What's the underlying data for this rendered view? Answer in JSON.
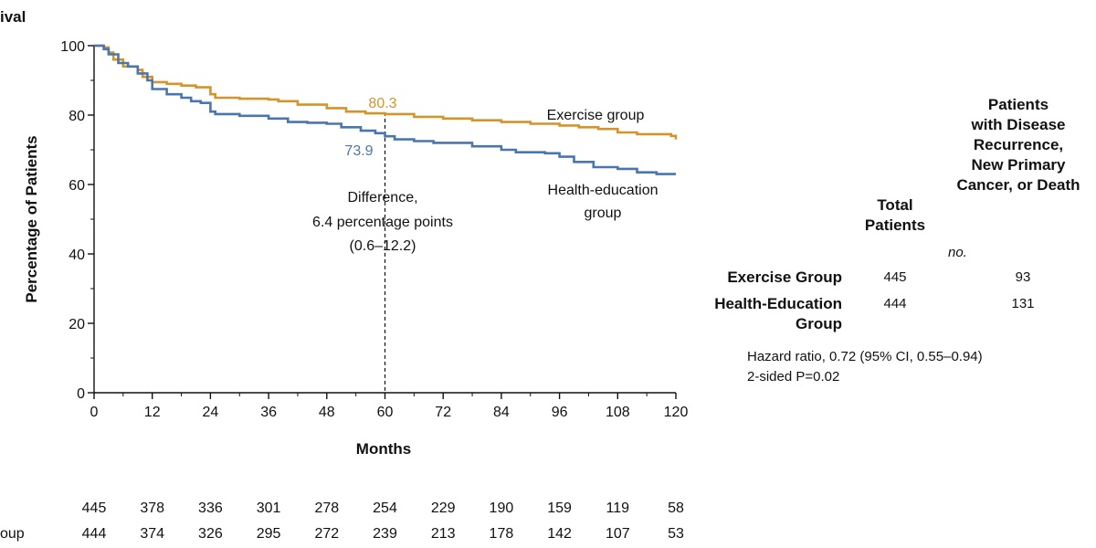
{
  "chart_data": {
    "type": "line",
    "title": "ival",
    "ylabel": "Percentage of Patients",
    "xlabel": "Months",
    "xlim": [
      0,
      120
    ],
    "ylim": [
      0,
      100
    ],
    "x_ticks": [
      0,
      12,
      24,
      36,
      48,
      60,
      72,
      84,
      96,
      108,
      120
    ],
    "y_ticks": [
      0,
      20,
      40,
      60,
      80,
      100
    ],
    "series": [
      {
        "name": "Exercise group",
        "color": "#d4942a",
        "points": [
          [
            0,
            100
          ],
          [
            2,
            99.5
          ],
          [
            3,
            98
          ],
          [
            4,
            96
          ],
          [
            6,
            94
          ],
          [
            9,
            93
          ],
          [
            10,
            91
          ],
          [
            12,
            89.5
          ],
          [
            15,
            89
          ],
          [
            18,
            88.5
          ],
          [
            21,
            88
          ],
          [
            24,
            86
          ],
          [
            25,
            85
          ],
          [
            30,
            84.7
          ],
          [
            36,
            84.5
          ],
          [
            38,
            84
          ],
          [
            42,
            83
          ],
          [
            48,
            82
          ],
          [
            52,
            81
          ],
          [
            56,
            80.5
          ],
          [
            60,
            80.3
          ],
          [
            66,
            79.5
          ],
          [
            72,
            79
          ],
          [
            78,
            78.5
          ],
          [
            84,
            78
          ],
          [
            90,
            77.5
          ],
          [
            96,
            77
          ],
          [
            100,
            76.5
          ],
          [
            104,
            76
          ],
          [
            108,
            75
          ],
          [
            112,
            74.5
          ],
          [
            119,
            74
          ],
          [
            120,
            73
          ]
        ]
      },
      {
        "name": "Health-education group",
        "color": "#4a76ad",
        "points": [
          [
            0,
            100
          ],
          [
            2,
            99
          ],
          [
            3,
            97.5
          ],
          [
            5,
            95
          ],
          [
            7,
            94
          ],
          [
            9,
            92
          ],
          [
            11,
            90
          ],
          [
            12,
            87.5
          ],
          [
            15,
            86
          ],
          [
            18,
            85
          ],
          [
            20,
            84
          ],
          [
            22,
            83.5
          ],
          [
            24,
            81
          ],
          [
            25,
            80.3
          ],
          [
            30,
            79.8
          ],
          [
            36,
            79
          ],
          [
            40,
            78
          ],
          [
            44,
            77.8
          ],
          [
            48,
            77.5
          ],
          [
            51,
            76.5
          ],
          [
            55,
            75.5
          ],
          [
            58,
            74.8
          ],
          [
            60,
            73.9
          ],
          [
            62,
            73
          ],
          [
            66,
            72.5
          ],
          [
            70,
            72
          ],
          [
            78,
            71
          ],
          [
            84,
            70
          ],
          [
            87,
            69.3
          ],
          [
            93,
            69
          ],
          [
            96,
            68
          ],
          [
            99,
            66.5
          ],
          [
            103,
            65
          ],
          [
            108,
            64.5
          ],
          [
            112,
            63.5
          ],
          [
            116,
            63
          ],
          [
            120,
            63
          ]
        ]
      }
    ],
    "annotations": {
      "exercise_at_60": "80.3",
      "health_at_60": "73.9",
      "difference_lines": [
        "Difference,",
        "6.4 percentage points",
        "(0.6–12.2)"
      ],
      "exercise_label": "Exercise group",
      "health_label_lines": [
        "Health-education",
        "group"
      ]
    },
    "at_risk": {
      "row_labels": [
        "",
        "oup"
      ],
      "exercise": [
        "445",
        "378",
        "336",
        "301",
        "278",
        "254",
        "229",
        "190",
        "159",
        "119",
        "58"
      ],
      "health_education": [
        "444",
        "374",
        "326",
        "295",
        "272",
        "239",
        "213",
        "178",
        "142",
        "107",
        "53"
      ]
    }
  },
  "summary_table": {
    "col_total_lines": [
      "Total",
      "Patients"
    ],
    "col_events_lines": [
      "Patients",
      "with Disease",
      "Recurrence,",
      "New Primary",
      "Cancer, or Death"
    ],
    "units": "no.",
    "rows": [
      {
        "label_lines": [
          "Exercise Group"
        ],
        "total": "445",
        "events": "93"
      },
      {
        "label_lines": [
          "Health-Education",
          "Group"
        ],
        "total": "444",
        "events": "131"
      }
    ],
    "hazard_ratio": "Hazard ratio, 0.72 (95% CI, 0.55–0.94)",
    "p_value": "2-sided P=0.02"
  }
}
